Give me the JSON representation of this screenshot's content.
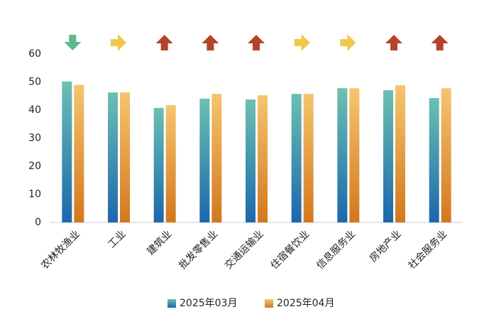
{
  "chart_data": {
    "type": "bar",
    "categories": [
      "农林牧渔业",
      "工业",
      "建筑业",
      "批发零售业",
      "交通运输业",
      "住宿餐饮业",
      "信息服务业",
      "房地产业",
      "社会服务业"
    ],
    "series": [
      {
        "name": "2025年03月",
        "gradient": [
          "#6cc0b1",
          "#1b67ad"
        ],
        "values": [
          50.2,
          46.3,
          40.8,
          44.1,
          43.8,
          45.8,
          47.8,
          47.1,
          44.3
        ]
      },
      {
        "name": "2025年04月",
        "gradient": [
          "#f5c56e",
          "#d2781e"
        ],
        "values": [
          49.0,
          46.3,
          41.8,
          45.8,
          45.3,
          45.8,
          47.8,
          48.9,
          47.8
        ]
      }
    ],
    "trend": [
      "down",
      "flat",
      "up",
      "up",
      "up",
      "flat",
      "flat",
      "up",
      "up"
    ],
    "trend_colors": {
      "down": "#5db88c",
      "flat": "#f0c84a",
      "up": "#b5432a"
    },
    "ylim": [
      0,
      60
    ],
    "yticks": [
      0,
      10,
      20,
      30,
      40,
      50,
      60
    ],
    "grid": false,
    "legend": "bottom"
  }
}
